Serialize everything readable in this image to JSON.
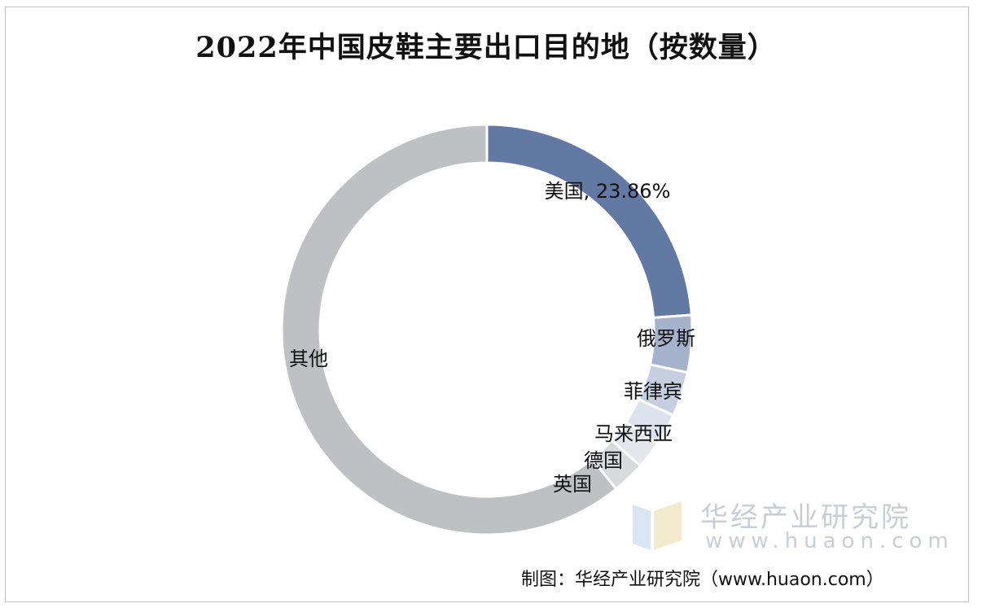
{
  "chart_data": {
    "type": "pie",
    "title": "2022年中国皮鞋主要出口目的地（按数量）",
    "categories": [
      "美国",
      "俄罗斯",
      "菲律宾",
      "马来西亚",
      "德国",
      "英国",
      "其他"
    ],
    "values": [
      23.86,
      4.5,
      3.5,
      2.5,
      2.2,
      2.6,
      60.84
    ],
    "data_labels": [
      "美国, 23.86%",
      "俄罗斯",
      "菲律宾",
      "马来西亚",
      "德国",
      "英国",
      "其他"
    ],
    "colors": [
      "#6279a4",
      "#a5b2cc",
      "#c5cfdf",
      "#dde3ee",
      "#e4e6ec",
      "#d9dadc",
      "#bfc0c3"
    ],
    "donut": true,
    "legend": "none"
  },
  "watermark": {
    "name": "华经产业研究院",
    "url": "www.huaon.com"
  },
  "source": "制图：华经产业研究院（www.huaon.com）"
}
